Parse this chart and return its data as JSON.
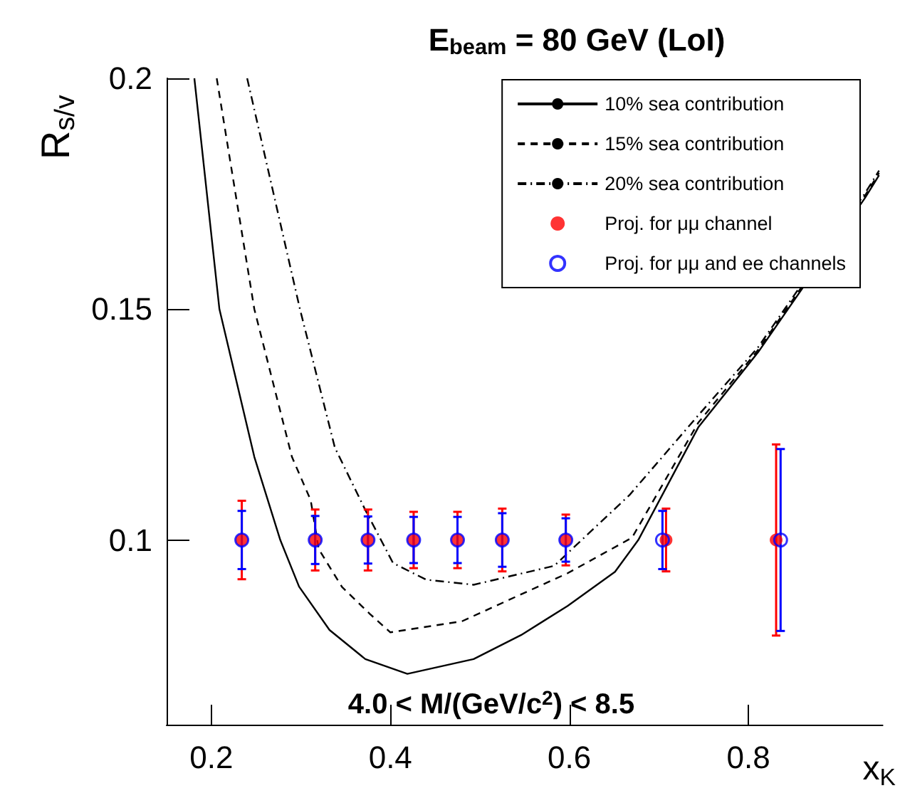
{
  "chart_data": {
    "type": "line",
    "title": "E$_{beam}$ = 80 GeV (LoI)",
    "xlabel": "x$_{K}$",
    "ylabel": "R$_{s/v}$",
    "xlim": [
      0.15,
      0.95
    ],
    "xticks": [
      0.2,
      0.4,
      0.6,
      0.8
    ],
    "ylim": [
      0.06,
      0.2
    ],
    "yticks": [
      0.1,
      0.15,
      0.2
    ],
    "grid": false,
    "legend": "top right",
    "annotations": [
      "4.0 < M/(GeV/c$^{2}$) < 8.5"
    ],
    "series": [
      {
        "name": "10% sea contribution",
        "color": "#000000",
        "line_style": "solid",
        "marker": "none",
        "x": [
          0.181,
          0.209,
          0.248,
          0.277,
          0.298,
          0.332,
          0.372,
          0.419,
          0.493,
          0.546,
          0.598,
          0.651,
          0.677,
          0.744,
          0.811,
          0.93,
          0.946
        ],
        "values": [
          0.2,
          0.15,
          0.118,
          0.1,
          0.0899,
          0.0805,
          0.0742,
          0.071,
          0.0742,
          0.0794,
          0.0857,
          0.0931,
          0.1,
          0.1244,
          0.1407,
          0.174,
          0.179
        ]
      },
      {
        "name": "15% sea contribution",
        "color": "#000000",
        "line_style": "dashed",
        "marker": "none",
        "x": [
          0.206,
          0.248,
          0.29,
          0.311,
          0.32,
          0.346,
          0.377,
          0.4,
          0.48,
          0.598,
          0.67,
          0.744,
          0.811,
          0.93,
          0.946
        ],
        "values": [
          0.2,
          0.15,
          0.118,
          0.1086,
          0.098,
          0.0898,
          0.084,
          0.08,
          0.0824,
          0.0928,
          0.1005,
          0.1254,
          0.1412,
          0.1745,
          0.1795
        ]
      },
      {
        "name": "20% sea contribution",
        "color": "#000000",
        "line_style": "dotted",
        "marker": "none",
        "x": [
          0.24,
          0.299,
          0.338,
          0.372,
          0.403,
          0.44,
          0.493,
          0.583,
          0.667,
          0.744,
          0.811,
          0.93,
          0.946
        ],
        "values": [
          0.2,
          0.15,
          0.12,
          0.1065,
          0.095,
          0.0914,
          0.0903,
          0.0944,
          0.1097,
          0.127,
          0.1418,
          0.175,
          0.18
        ]
      },
      {
        "name": "Proj. for μμ channel",
        "type": "scatter",
        "color": "#ff0000",
        "marker": "circle",
        "x": [
          0.234,
          0.316,
          0.375,
          0.426,
          0.475,
          0.525,
          0.596,
          0.708,
          0.831
        ],
        "values": [
          0.1,
          0.1,
          0.1,
          0.1,
          0.1,
          0.1,
          0.1,
          0.1,
          0.1
        ],
        "errors": [
          0.0085,
          0.0066,
          0.0066,
          0.0061,
          0.0061,
          0.0068,
          0.0055,
          0.0068,
          0.0207
        ]
      },
      {
        "name": "Proj. for μμ and ee channels",
        "type": "scatter",
        "color": "#0000ff",
        "marker": "circle",
        "x": [
          0.234,
          0.316,
          0.375,
          0.426,
          0.475,
          0.525,
          0.596,
          0.704,
          0.836
        ],
        "values": [
          0.1,
          0.1,
          0.1,
          0.1,
          0.1,
          0.1,
          0.1,
          0.1,
          0.1
        ],
        "errors": [
          0.0063,
          0.0052,
          0.0051,
          0.005,
          0.005,
          0.0058,
          0.0047,
          0.0063,
          0.0197
        ]
      }
    ]
  }
}
